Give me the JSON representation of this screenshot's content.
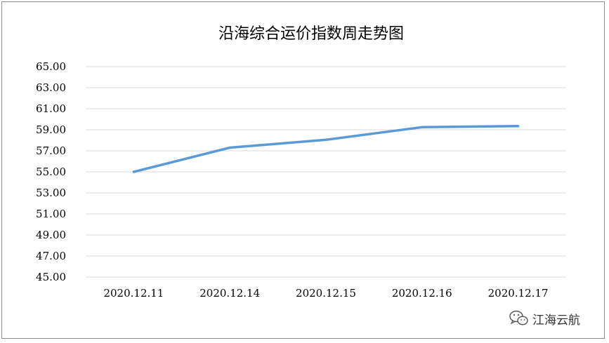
{
  "chart_data": {
    "type": "line",
    "title": "沿海综合运价指数周走势图",
    "xlabel": "",
    "ylabel": "",
    "categories": [
      "2020.12.11",
      "2020.12.14",
      "2020.12.15",
      "2020.12.16",
      "2020.12.17"
    ],
    "series": [
      {
        "values": [
          55.0,
          57.3,
          58.05,
          59.25,
          59.35
        ]
      }
    ],
    "ylim": [
      45,
      65
    ],
    "y_ticks": [
      "45.00",
      "47.00",
      "49.00",
      "51.00",
      "53.00",
      "55.00",
      "57.00",
      "59.00",
      "61.00",
      "63.00",
      "65.00"
    ],
    "grid": true,
    "legend": "none",
    "line_color": "#5b9bd5",
    "grid_color": "#d9d9d9"
  },
  "watermark": {
    "text": "江海云航",
    "icon": "wechat-icon"
  }
}
